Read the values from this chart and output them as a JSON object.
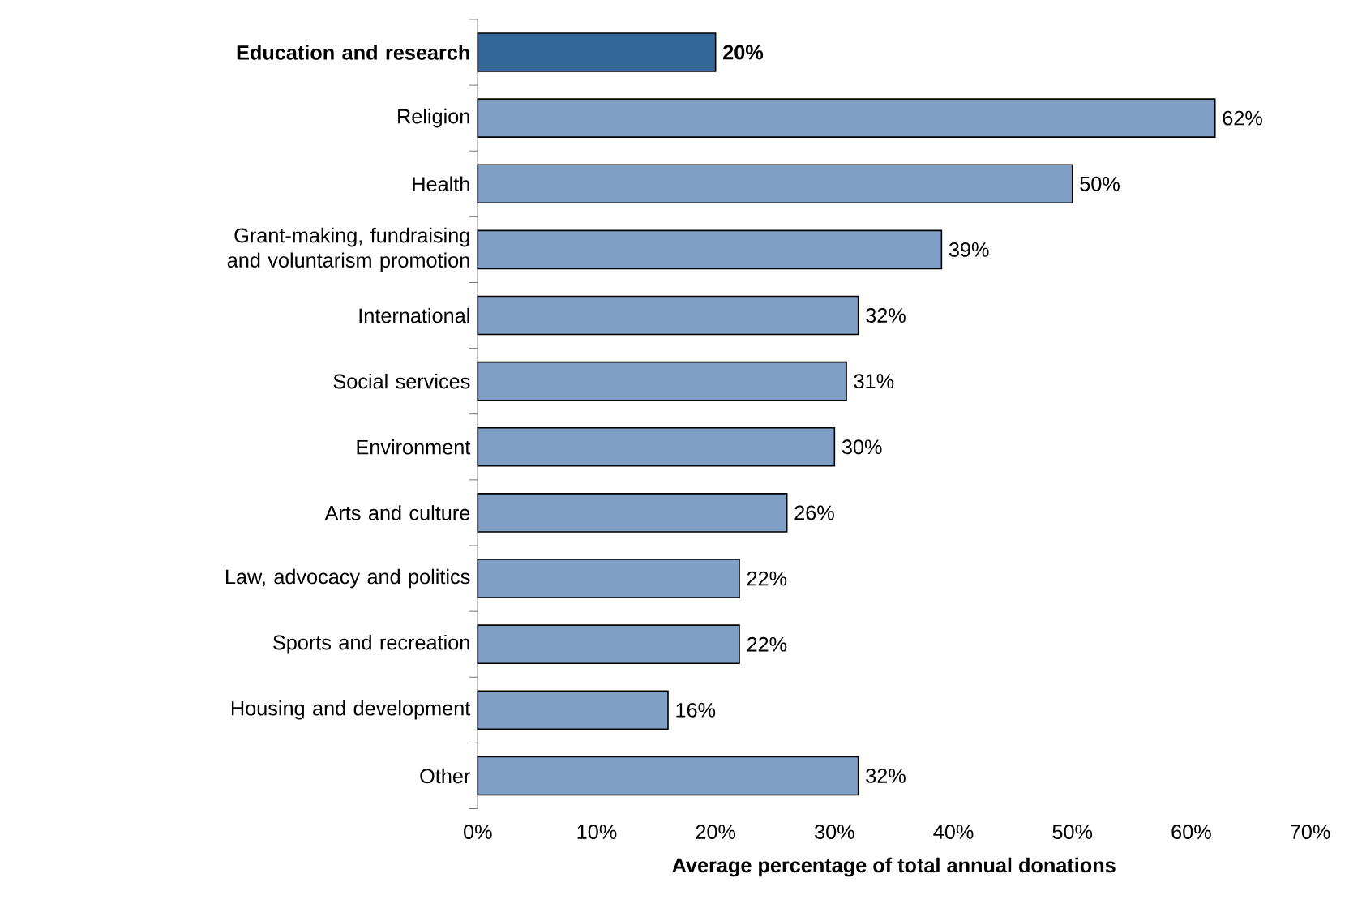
{
  "chart_data": {
    "type": "bar",
    "orientation": "horizontal",
    "xlabel": "**Average percentage of total annual donations**",
    "categories": [
      "**Education and research**",
      "Religion",
      "Health",
      "Grant-making, fundraising and voluntarism promotion",
      "International",
      "Social services",
      "Environment",
      "Arts and culture",
      "Law, advocacy and politics",
      "Sports and recreation",
      "Housing and development",
      "Other"
    ],
    "values": [
      20,
      62,
      50,
      39,
      32,
      31,
      30,
      26,
      22,
      22,
      16,
      32
    ],
    "colors": [
      "#336699",
      "#7f9fc7",
      "#7f9fc7",
      "#7f9fc7",
      "#7f9fc7",
      "#7f9fc7",
      "#7f9fc7",
      "#7f9fc7",
      "#7f9fc7",
      "#7f9fc7",
      "#7f9fc7",
      "#7f9fc7"
    ],
    "value_labels": [
      "**20%**",
      "62%",
      "50%",
      "39%",
      "32%",
      "31%",
      "30%",
      "26%",
      "22%",
      "22%",
      "16%",
      "32%"
    ],
    "xlim": [
      0,
      70
    ],
    "xticks": [
      {
        "value": 0,
        "label": "0%"
      },
      {
        "value": 10,
        "label": "10%"
      },
      {
        "value": 20,
        "label": "20%"
      },
      {
        "value": 30,
        "label": "30%"
      },
      {
        "value": 40,
        "label": "40%"
      },
      {
        "value": 50,
        "label": "50%"
      },
      {
        "value": 60,
        "label": "60%"
      },
      {
        "value": 70,
        "label": "70%"
      }
    ],
    "grid": false
  }
}
